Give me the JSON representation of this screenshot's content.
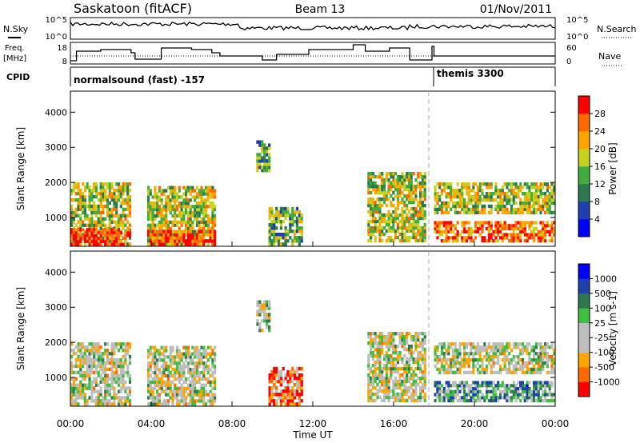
{
  "header": {
    "station": "Saskatoon (fitACF)",
    "beam": "Beam 13",
    "date": "01/Nov/2011"
  },
  "noise_panel": {
    "left_label": "N.Sky",
    "right_label": "N.Search",
    "left_ticks": [
      "10^5",
      "10^0"
    ],
    "right_ticks": [
      "10^5",
      "10^0"
    ]
  },
  "freq_panel": {
    "left_label_line1": "Freq.",
    "left_label_line2": "[MHz]",
    "right_label": "Nave",
    "left_ticks": [
      "18",
      "8"
    ],
    "right_ticks": [
      "60",
      "0"
    ]
  },
  "cpid_panel": {
    "label": "CPID",
    "modes": [
      {
        "name": "normalsound (fast) -157",
        "start_hour": 0
      },
      {
        "name": "themis 3300",
        "start_hour": 18
      }
    ]
  },
  "colors": {
    "power_scale": [
      "#0000ff",
      "#1f3fb0",
      "#2e7a50",
      "#3fae3f",
      "#c8d020",
      "#ffa500",
      "#ff6a00",
      "#ff0000"
    ],
    "velocity_scale": [
      "#ff0000",
      "#ff6a00",
      "#ffa500",
      "#bebebe",
      "#bebebe",
      "#3fbf3f",
      "#2e7a50",
      "#1f3fb0",
      "#0000ff"
    ]
  },
  "chart_data": [
    {
      "type": "heatmap",
      "name": "power",
      "ylabel": "Slant Range [km]",
      "ylim": [
        180,
        4600
      ],
      "y_ticks": [
        "1000",
        "2000",
        "3000",
        "4000"
      ],
      "xlim": [
        0,
        24
      ],
      "colorbar": {
        "label": "Power [dB]",
        "tick_labels": [
          "4",
          "8",
          "12",
          "16",
          "20",
          "24",
          "28"
        ],
        "range": [
          0,
          32
        ]
      },
      "echo_regions": [
        {
          "t0": 0.0,
          "t1": 3.0,
          "r0": 200,
          "r1": 2000,
          "level": 0.55
        },
        {
          "t0": 0.0,
          "t1": 3.0,
          "r0": 200,
          "r1": 700,
          "level": 0.9
        },
        {
          "t0": 3.8,
          "t1": 7.2,
          "r0": 200,
          "r1": 1900,
          "level": 0.55
        },
        {
          "t0": 3.8,
          "t1": 7.2,
          "r0": 200,
          "r1": 650,
          "level": 0.85
        },
        {
          "t0": 9.2,
          "t1": 9.9,
          "r0": 2300,
          "r1": 3200,
          "level": 0.4
        },
        {
          "t0": 9.8,
          "t1": 11.5,
          "r0": 200,
          "r1": 1300,
          "level": 0.45
        },
        {
          "t0": 14.7,
          "t1": 17.6,
          "r0": 300,
          "r1": 2300,
          "level": 0.55
        },
        {
          "t0": 18.0,
          "t1": 24.0,
          "r0": 1100,
          "r1": 2000,
          "level": 0.55
        },
        {
          "t0": 18.0,
          "t1": 24.0,
          "r0": 300,
          "r1": 900,
          "level": 0.8
        }
      ]
    },
    {
      "type": "heatmap",
      "name": "velocity",
      "ylabel": "Slant Range [km]",
      "xlabel": "Time UT",
      "ylim": [
        180,
        4600
      ],
      "y_ticks": [
        "1000",
        "2000",
        "3000",
        "4000"
      ],
      "x_ticks": [
        "00:00",
        "04:00",
        "08:00",
        "12:00",
        "16:00",
        "20:00",
        "00:00"
      ],
      "xlim": [
        0,
        24
      ],
      "colorbar": {
        "label": "Velocity [m s-1]",
        "tick_labels": [
          "1000",
          "500",
          "100",
          "25",
          "-25",
          "-100",
          "-500",
          "-1000"
        ]
      },
      "echo_regions": [
        {
          "t0": 0.0,
          "t1": 3.0,
          "r0": 200,
          "r1": 2000,
          "level": 0.45
        },
        {
          "t0": 3.8,
          "t1": 7.2,
          "r0": 200,
          "r1": 1900,
          "level": 0.45
        },
        {
          "t0": 9.2,
          "t1": 9.9,
          "r0": 2300,
          "r1": 3200,
          "level": 0.5
        },
        {
          "t0": 9.8,
          "t1": 11.5,
          "r0": 200,
          "r1": 1300,
          "level": 0.2
        },
        {
          "t0": 14.7,
          "t1": 17.6,
          "r0": 300,
          "r1": 2300,
          "level": 0.45
        },
        {
          "t0": 18.0,
          "t1": 24.0,
          "r0": 1100,
          "r1": 2000,
          "level": 0.45
        },
        {
          "t0": 18.0,
          "t1": 24.0,
          "r0": 300,
          "r1": 900,
          "level": 0.65
        }
      ]
    }
  ]
}
